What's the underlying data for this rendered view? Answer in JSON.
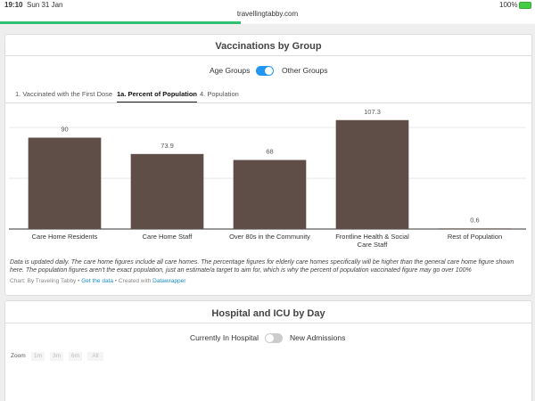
{
  "status_bar": {
    "time": "19:10",
    "date": "Sun 31 Jan",
    "url": "travellingtabby.com",
    "battery": "100%"
  },
  "section1": {
    "toggle": {
      "left": "Age Groups",
      "right": "Other Groups"
    },
    "tabs": [
      "1. Vaccinated with the First Dose",
      "1a. Percent of Population",
      "4. Population"
    ],
    "notes": "Data is updated daily. The care home figures include all care homes. The percentage figures for elderly care homes specifically will be higher than the general care home figure shown here. The population figures aren't the exact population, just an estimate/a target to aim for, which is why the percent of population vaccinated figure may go over 100%",
    "credit": [
      "Chart: By Traveling Tabby • ",
      "Get the data",
      " • Created with ",
      "Datawrapper"
    ]
  },
  "chart_data": {
    "type": "bar",
    "title": "Vaccinations by Group",
    "categories": [
      "Care Home Residents",
      "Care Home Staff",
      "Over 80s in the Community",
      "Frontline Health & Social Care Staff",
      "Rest of Population"
    ],
    "values": [
      90,
      73.9,
      68,
      107.3,
      0.6
    ],
    "color": "#5f4d47",
    "ylim": [
      0,
      115
    ],
    "yticks": [
      0,
      50,
      100
    ],
    "grid": true
  },
  "section2": {
    "title": "Hospital and ICU by Day",
    "toggle": {
      "left": "Currently In Hospital",
      "right": "New Admissions"
    },
    "zoom": {
      "label": "Zoom",
      "buttons": [
        "1m",
        "3m",
        "6m",
        "All"
      ]
    }
  }
}
